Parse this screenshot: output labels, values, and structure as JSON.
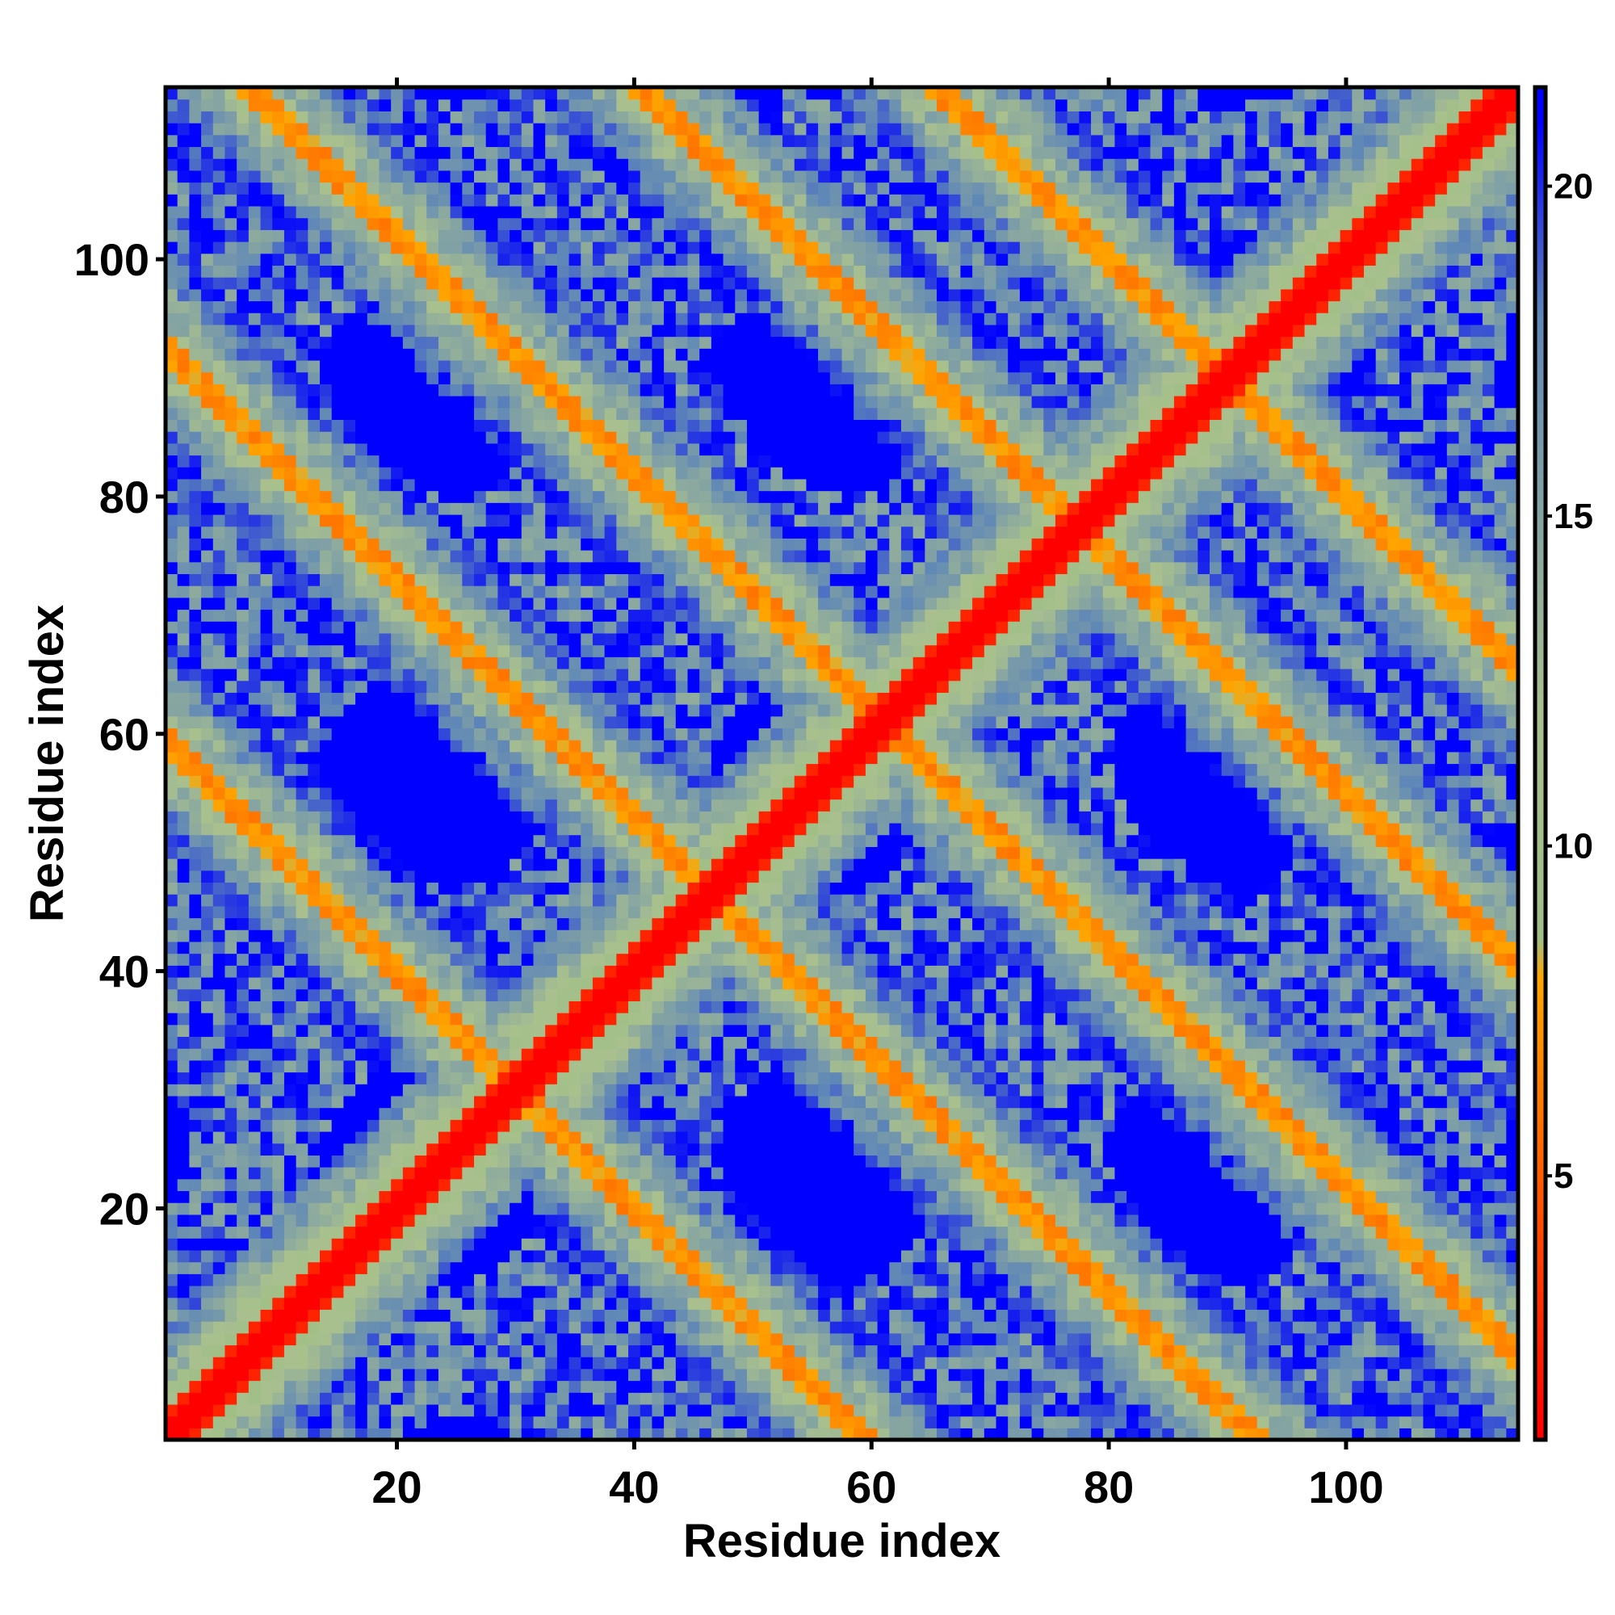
{
  "chart_data": {
    "type": "heatmap",
    "title": "",
    "xlabel": "Residue index",
    "ylabel": "Residue index",
    "n": 114,
    "xlim": [
      1,
      114
    ],
    "ylim": [
      1,
      114
    ],
    "x_ticks": [
      20,
      40,
      60,
      80,
      100
    ],
    "y_ticks": [
      20,
      40,
      60,
      80,
      100
    ],
    "colorbar": {
      "range": [
        1,
        21.5
      ],
      "ticks": [
        5,
        10,
        15,
        20
      ],
      "stops": [
        {
          "value": 1,
          "color": "#ff0000"
        },
        {
          "value": 4,
          "color": "#ff4500"
        },
        {
          "value": 8,
          "color": "#ffa500"
        },
        {
          "value": 8.6,
          "color": "#9fbf86"
        },
        {
          "value": 12,
          "color": "#a9c08e"
        },
        {
          "value": 18,
          "color": "#5f87b7"
        },
        {
          "value": 21,
          "color": "#0000ff"
        }
      ]
    },
    "value_description": "Symmetric residue distance map; main diagonal near 1, anti-diagonal orange bands near 7, background saturates at 21"
  }
}
